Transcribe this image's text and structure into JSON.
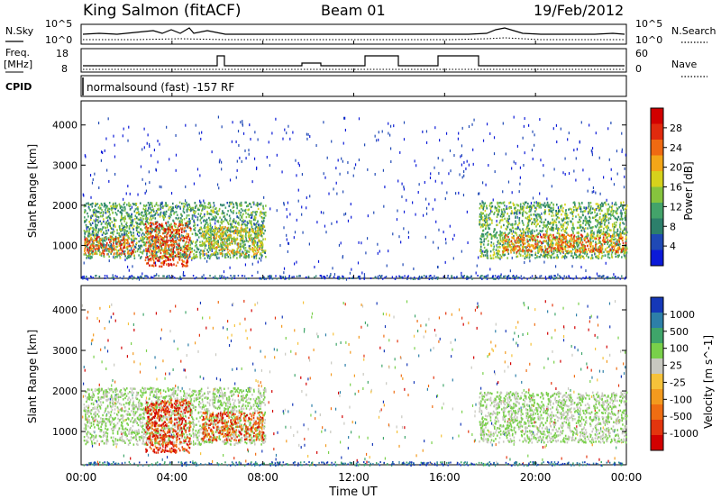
{
  "header": {
    "station": "King Salmon (fitACF)",
    "beam": "Beam 01",
    "date": "19/Feb/2012"
  },
  "left_labels": {
    "nsky": "N.Sky",
    "freq_line1": "Freq.",
    "freq_line2": "[MHz]",
    "cpid": "CPID"
  },
  "right_labels": {
    "nsearch": "N.Search",
    "nave": "Nave"
  },
  "noise_panel": {
    "ticks_left": [
      "10^5",
      "10^0"
    ],
    "ticks_right": [
      "10^5",
      "10^0"
    ]
  },
  "freq_panel": {
    "ticks_left": [
      "18",
      "8"
    ],
    "ticks_right": [
      "60",
      "0"
    ]
  },
  "cpid_text": "normalsound (fast) -157 RF",
  "xaxis": {
    "label": "Time UT",
    "ticks": [
      "00:00",
      "04:00",
      "08:00",
      "12:00",
      "16:00",
      "20:00",
      "00:00"
    ]
  },
  "chart_data": [
    {
      "type": "heatmap",
      "panel": "power",
      "ylabel": "Slant Range [km]",
      "yticks": [
        1000,
        2000,
        3000,
        4000
      ],
      "ylim": [
        180,
        4600
      ],
      "xlim_hours": [
        0,
        24
      ],
      "colorbar": {
        "label": "Power [dB]",
        "ticks": [
          "28",
          "24",
          "20",
          "16",
          "12",
          "8",
          "4"
        ],
        "colors": [
          "#0b1ad8",
          "#1f49b5",
          "#2c7f6b",
          "#43a36a",
          "#86c43e",
          "#d6d21c",
          "#f3a618",
          "#ef6a12",
          "#e02a0e",
          "#d20000"
        ]
      },
      "regions": [
        {
          "t0": 0.1,
          "t1": 8.1,
          "r0": 700,
          "r1": 2100,
          "level": 0.35
        },
        {
          "t0": 0.1,
          "t1": 2.3,
          "r0": 800,
          "r1": 1250,
          "level": 0.75
        },
        {
          "t0": 2.8,
          "t1": 4.8,
          "r0": 500,
          "r1": 1600,
          "level": 0.8
        },
        {
          "t0": 5.3,
          "t1": 8.0,
          "r0": 800,
          "r1": 1500,
          "level": 0.55
        },
        {
          "t0": 17.5,
          "t1": 24.0,
          "r0": 700,
          "r1": 2100,
          "level": 0.4
        },
        {
          "t0": 18.5,
          "t1": 24.0,
          "r0": 850,
          "r1": 1300,
          "level": 0.72
        }
      ]
    },
    {
      "type": "heatmap",
      "panel": "velocity",
      "ylabel": "Slant Range [km]",
      "yticks": [
        1000,
        2000,
        3000,
        4000
      ],
      "ylim": [
        180,
        4600
      ],
      "xlim_hours": [
        0,
        24
      ],
      "colorbar": {
        "label": "Velocity [m s^-1]",
        "ticks": [
          "1000",
          "500",
          "100",
          "25",
          "-25",
          "-100",
          "-500",
          "-1000"
        ],
        "colors": [
          "#1538b8",
          "#2d7fa8",
          "#3fa56a",
          "#79d04a",
          "#c8c8c0",
          "#f6c23a",
          "#f39a1e",
          "#ef6d12",
          "#e3350e",
          "#d20000"
        ]
      },
      "regions": [
        {
          "t0": 0.1,
          "t1": 8.1,
          "r0": 700,
          "r1": 2100,
          "level": 0.4
        },
        {
          "t0": 2.8,
          "t1": 4.8,
          "r0": 500,
          "r1": 1800,
          "level": 0.85
        },
        {
          "t0": 5.3,
          "t1": 8.0,
          "r0": 800,
          "r1": 1500,
          "level": 0.8
        },
        {
          "t0": 17.5,
          "t1": 24.0,
          "r0": 750,
          "r1": 2000,
          "level": 0.45
        }
      ]
    }
  ]
}
